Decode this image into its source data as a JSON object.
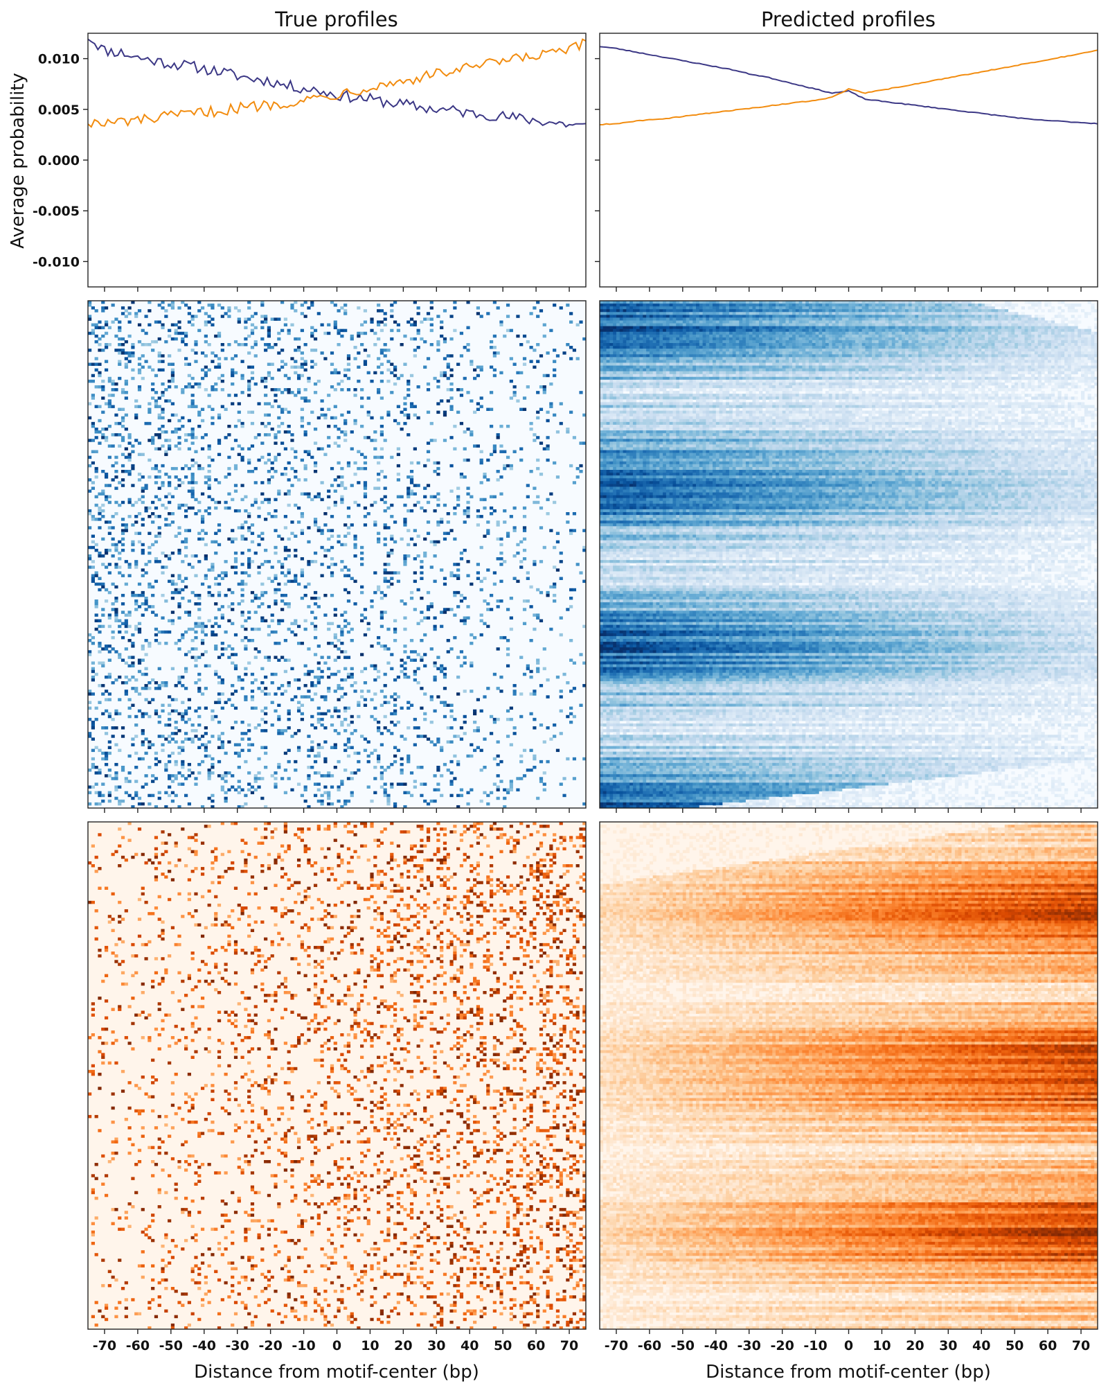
{
  "chart_data": [
    {
      "type": "line",
      "panel": "top-left",
      "title": "True profiles",
      "ylabel": "Average probability",
      "xlabel": "",
      "xlim": [
        -75,
        75
      ],
      "ylim": [
        -0.0125,
        0.0125
      ],
      "yticks": [
        0.01,
        0.005,
        0.0,
        -0.005,
        -0.01
      ],
      "ytick_labels": [
        "0.010",
        "0.005",
        "0.000",
        "-0.005",
        "-0.010"
      ],
      "xticks": [
        -70,
        -60,
        -50,
        -40,
        -30,
        -20,
        -10,
        0,
        10,
        20,
        30,
        40,
        50,
        60,
        70
      ],
      "xtick_labels_shown": false,
      "x": [
        -75,
        -70,
        -65,
        -60,
        -55,
        -50,
        -45,
        -40,
        -35,
        -30,
        -25,
        -20,
        -15,
        -10,
        -5,
        0,
        5,
        10,
        15,
        20,
        25,
        30,
        35,
        40,
        45,
        50,
        55,
        60,
        65,
        70,
        75
      ],
      "noisy": true,
      "series": [
        {
          "color": "#3b3785",
          "values": [
            0.0122,
            0.0108,
            0.0106,
            0.0101,
            0.0098,
            0.0095,
            0.0093,
            0.009,
            0.0087,
            0.0083,
            0.008,
            0.0078,
            0.0073,
            0.0071,
            0.0068,
            0.0064,
            0.0062,
            0.006,
            0.0057,
            0.0055,
            0.0052,
            0.005,
            0.0049,
            0.0046,
            0.0045,
            0.0043,
            0.0041,
            0.0039,
            0.0037,
            0.0035,
            0.0033
          ]
        },
        {
          "color": "#f28c0f",
          "values": [
            0.0038,
            0.0035,
            0.0038,
            0.0039,
            0.0041,
            0.0043,
            0.0045,
            0.0047,
            0.0049,
            0.0051,
            0.0053,
            0.0055,
            0.0057,
            0.0059,
            0.0062,
            0.0065,
            0.0069,
            0.0072,
            0.0075,
            0.0078,
            0.0081,
            0.0085,
            0.0088,
            0.0091,
            0.0094,
            0.0097,
            0.01,
            0.0102,
            0.0106,
            0.0108,
            0.0115
          ]
        }
      ]
    },
    {
      "type": "line",
      "panel": "top-right",
      "title": "Predicted profiles",
      "xlabel": "",
      "ylabel": "",
      "xlim": [
        -75,
        75
      ],
      "ylim": [
        -0.0125,
        0.0125
      ],
      "yticks": [
        0.01,
        0.005,
        0.0,
        -0.005,
        -0.01
      ],
      "ytick_labels_shown": false,
      "xticks": [
        -70,
        -60,
        -50,
        -40,
        -30,
        -20,
        -10,
        0,
        10,
        20,
        30,
        40,
        50,
        60,
        70
      ],
      "xtick_labels_shown": false,
      "x": [
        -75,
        -70,
        -65,
        -60,
        -55,
        -50,
        -45,
        -40,
        -35,
        -30,
        -25,
        -20,
        -15,
        -10,
        -5,
        0,
        5,
        10,
        15,
        20,
        25,
        30,
        35,
        40,
        45,
        50,
        55,
        60,
        65,
        70,
        75
      ],
      "noisy": false,
      "series": [
        {
          "color": "#3b3785",
          "values": [
            0.0112,
            0.011,
            0.0107,
            0.0104,
            0.0101,
            0.0098,
            0.0095,
            0.0092,
            0.0089,
            0.0085,
            0.0082,
            0.0078,
            0.0074,
            0.007,
            0.0066,
            0.0068,
            0.006,
            0.0058,
            0.0056,
            0.0054,
            0.0052,
            0.005,
            0.0048,
            0.0046,
            0.0044,
            0.0042,
            0.004,
            0.0039,
            0.0038,
            0.0037,
            0.0036
          ]
        },
        {
          "color": "#f28c0f",
          "values": [
            0.0035,
            0.0036,
            0.0038,
            0.004,
            0.0041,
            0.0043,
            0.0045,
            0.0047,
            0.0049,
            0.0051,
            0.0053,
            0.0055,
            0.0057,
            0.0059,
            0.0062,
            0.007,
            0.0066,
            0.0069,
            0.0072,
            0.0075,
            0.0078,
            0.0081,
            0.0084,
            0.0087,
            0.009,
            0.0093,
            0.0096,
            0.0099,
            0.0102,
            0.0105,
            0.0108
          ]
        }
      ]
    },
    {
      "type": "heatmap",
      "panel": "middle-left",
      "colormap": "Blues",
      "xlim": [
        -75,
        75
      ],
      "xticks": [
        -70,
        -60,
        -50,
        -40,
        -30,
        -20,
        -10,
        0,
        10,
        20,
        30,
        40,
        50,
        60,
        70
      ],
      "xtick_labels_shown": false,
      "value_range": [
        0,
        1
      ],
      "sparse": true
    },
    {
      "type": "heatmap",
      "panel": "middle-right",
      "colormap": "Blues",
      "xlim": [
        -75,
        75
      ],
      "xticks": [
        -70,
        -60,
        -50,
        -40,
        -30,
        -20,
        -10,
        0,
        10,
        20,
        30,
        40,
        50,
        60,
        70
      ],
      "xtick_labels_shown": false,
      "value_range": [
        0,
        1
      ],
      "sparse": false
    },
    {
      "type": "heatmap",
      "panel": "bottom-left",
      "colormap": "Oranges",
      "xlabel": "Distance from motif-center (bp)",
      "xlim": [
        -75,
        75
      ],
      "xticks": [
        -70,
        -60,
        -50,
        -40,
        -30,
        -20,
        -10,
        0,
        10,
        20,
        30,
        40,
        50,
        60,
        70
      ],
      "xtick_labels": [
        "-70",
        "-60",
        "-50",
        "-40",
        "-30",
        "-20",
        "-10",
        "0",
        "10",
        "20",
        "30",
        "40",
        "50",
        "60",
        "70"
      ],
      "value_range": [
        0,
        1
      ],
      "sparse": true
    },
    {
      "type": "heatmap",
      "panel": "bottom-right",
      "colormap": "Oranges",
      "xlabel": "Distance from motif-center (bp)",
      "xlim": [
        -75,
        75
      ],
      "xticks": [
        -70,
        -60,
        -50,
        -40,
        -30,
        -20,
        -10,
        0,
        10,
        20,
        30,
        40,
        50,
        60,
        70
      ],
      "xtick_labels": [
        "-70",
        "-60",
        "-50",
        "-40",
        "-30",
        "-20",
        "-10",
        "0",
        "10",
        "20",
        "30",
        "40",
        "50",
        "60",
        "70"
      ],
      "value_range": [
        0,
        1
      ],
      "sparse": false
    }
  ]
}
